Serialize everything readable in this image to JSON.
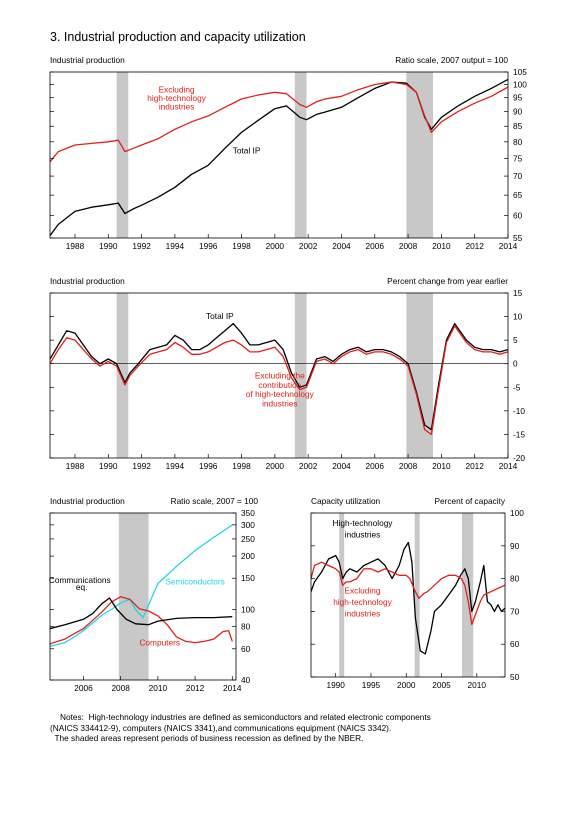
{
  "page_title": "3. Industrial production and capacity utilization",
  "notes": [
    "Notes:  High-technology industries are defined as semiconductors and related electronic components",
    "(NAICS 334412-9), computers (NAICS 3341),and communications equipment (NAICS 3342).",
    "  The shaded areas represent periods of business recession as defined by the NBER."
  ],
  "colors": {
    "total": "#000000",
    "excluding": "#e0201a",
    "semiconductors": "#22d4e8",
    "computers": "#e0201a",
    "communications": "#000000",
    "recession": "#c8c8c8"
  },
  "chart_data": [
    {
      "id": "panel1",
      "type": "line",
      "title": "Industrial production",
      "subtitle": "Ratio scale, 2007 output = 100",
      "y_scale": "log",
      "xlim": [
        1986.5,
        2014.0
      ],
      "ylim": [
        55,
        105
      ],
      "x_ticks": [
        1988,
        1990,
        1992,
        1994,
        1996,
        1998,
        2000,
        2002,
        2004,
        2006,
        2008,
        2010,
        2012,
        2014
      ],
      "y_ticks": [
        55,
        60,
        65,
        70,
        75,
        80,
        85,
        90,
        95,
        100,
        105
      ],
      "recessions": [
        [
          1990.5,
          1991.2
        ],
        [
          2001.2,
          2001.9
        ],
        [
          2007.9,
          2009.5
        ]
      ],
      "annotations": [
        {
          "text": "Excluding",
          "x": 1994.1,
          "y": 97,
          "color": "#e0201a"
        },
        {
          "text": "high-technology",
          "x": 1994.1,
          "y": 93.8,
          "color": "#e0201a"
        },
        {
          "text": "industries",
          "x": 1994.1,
          "y": 90.8,
          "color": "#e0201a"
        },
        {
          "text": "Total IP",
          "x": 1998.3,
          "y": 76.5,
          "color": "#000000"
        }
      ],
      "series": [
        {
          "name": "Total IP",
          "color": "#000000",
          "x": [
            1986.5,
            1987.0,
            1988.0,
            1989.0,
            1990.0,
            1990.6,
            1991.0,
            1991.5,
            1992.0,
            1993.0,
            1994.0,
            1995.0,
            1996.0,
            1997.0,
            1998.0,
            1999.0,
            2000.0,
            2000.7,
            2001.5,
            2001.9,
            2002.5,
            2003.0,
            2004.0,
            2005.0,
            2006.0,
            2007.0,
            2007.9,
            2008.5,
            2009.0,
            2009.4,
            2010.0,
            2011.0,
            2012.0,
            2013.0,
            2014.0
          ],
          "y": [
            55.5,
            58,
            61,
            62,
            62.6,
            63,
            60.5,
            61.6,
            62.5,
            64.5,
            67,
            70.5,
            73,
            78,
            83,
            87,
            91,
            92,
            88,
            87.2,
            89,
            89.8,
            91.5,
            95,
            98.5,
            101,
            100.5,
            97,
            88,
            84,
            88,
            92,
            95.5,
            98.5,
            102
          ]
        },
        {
          "name": "Excluding high-technology industries",
          "color": "#e0201a",
          "x": [
            1986.5,
            1987.0,
            1988.0,
            1989.0,
            1990.0,
            1990.6,
            1991.0,
            1991.5,
            1992.0,
            1993.0,
            1994.0,
            1995.0,
            1996.0,
            1997.0,
            1998.0,
            1999.0,
            2000.0,
            2000.7,
            2001.5,
            2001.9,
            2002.5,
            2003.0,
            2004.0,
            2005.0,
            2006.0,
            2007.0,
            2007.9,
            2008.5,
            2009.0,
            2009.4,
            2010.0,
            2011.0,
            2012.0,
            2013.0,
            2014.0
          ],
          "y": [
            74,
            77,
            79,
            79.5,
            80,
            80.5,
            77,
            78,
            79,
            81,
            84,
            86.5,
            88.5,
            91.5,
            94.5,
            96,
            97,
            96.5,
            92.5,
            91.5,
            93.5,
            94.5,
            95.5,
            98,
            100,
            101,
            100,
            97,
            88.5,
            83,
            86.5,
            90,
            93,
            95.5,
            99
          ]
        }
      ]
    },
    {
      "id": "panel2",
      "type": "line",
      "title": "Industrial production",
      "subtitle": "Percent change from year earlier",
      "xlim": [
        1986.5,
        2014.0
      ],
      "ylim": [
        -20,
        15
      ],
      "x_ticks": [
        1988,
        1990,
        1992,
        1994,
        1996,
        1998,
        2000,
        2002,
        2004,
        2006,
        2008,
        2010,
        2012,
        2014
      ],
      "y_ticks": [
        -20,
        -15,
        -10,
        -5,
        0,
        5,
        10,
        15
      ],
      "zero_line": true,
      "recessions": [
        [
          1990.5,
          1991.2
        ],
        [
          2001.2,
          2001.9
        ],
        [
          2007.9,
          2009.5
        ]
      ],
      "annotations": [
        {
          "text": "Total IP",
          "x": 1996.7,
          "y": 9.5,
          "color": "#000000"
        },
        {
          "text": "Excluding the",
          "x": 2000.3,
          "y": -3.1,
          "color": "#e0201a"
        },
        {
          "text": "contribution",
          "x": 2000.3,
          "y": -5.1,
          "color": "#e0201a"
        },
        {
          "text": "of high-technology",
          "x": 2000.3,
          "y": -7.1,
          "color": "#e0201a"
        },
        {
          "text": "industries",
          "x": 2000.3,
          "y": -9.1,
          "color": "#e0201a"
        }
      ],
      "series": [
        {
          "name": "Total IP",
          "color": "#000000",
          "x": [
            1986.5,
            1987.0,
            1987.5,
            1988.0,
            1988.5,
            1989.0,
            1989.5,
            1990.0,
            1990.5,
            1991.0,
            1991.3,
            1991.8,
            1992.5,
            1993.0,
            1993.5,
            1994.0,
            1994.5,
            1995.0,
            1995.5,
            1996.0,
            1996.5,
            1997.0,
            1997.5,
            1998.0,
            1998.5,
            1999.0,
            1999.5,
            2000.0,
            2000.5,
            2001.0,
            2001.5,
            2001.9,
            2002.5,
            2003.0,
            2003.5,
            2004.0,
            2004.5,
            2005.0,
            2005.5,
            2006.0,
            2006.5,
            2007.0,
            2007.5,
            2008.0,
            2008.5,
            2009.0,
            2009.4,
            2009.8,
            2010.3,
            2010.8,
            2011.5,
            2012.0,
            2012.5,
            2013.0,
            2013.5,
            2014.0
          ],
          "y": [
            1,
            4,
            7,
            6.5,
            4,
            1.5,
            0,
            1,
            0,
            -4,
            -2,
            0,
            3,
            3.5,
            4,
            6,
            5,
            3,
            3,
            4,
            5.5,
            7,
            8.5,
            6.5,
            4,
            4,
            4.5,
            5,
            3,
            -2,
            -5,
            -4.5,
            1,
            1.5,
            0.5,
            2,
            3,
            3.5,
            2.5,
            3,
            3,
            2.5,
            1.5,
            0,
            -6,
            -13,
            -14,
            -5,
            5,
            8.5,
            5,
            3.5,
            3,
            3,
            2.5,
            3
          ]
        },
        {
          "name": "Excluding the contribution of high-technology industries",
          "color": "#e0201a",
          "x": [
            1986.5,
            1987.0,
            1987.5,
            1988.0,
            1988.5,
            1989.0,
            1989.5,
            1990.0,
            1990.5,
            1991.0,
            1991.3,
            1991.8,
            1992.5,
            1993.0,
            1993.5,
            1994.0,
            1994.5,
            1995.0,
            1995.5,
            1996.0,
            1996.5,
            1997.0,
            1997.5,
            1998.0,
            1998.5,
            1999.0,
            1999.5,
            2000.0,
            2000.5,
            2001.0,
            2001.5,
            2001.9,
            2002.5,
            2003.0,
            2003.5,
            2004.0,
            2004.5,
            2005.0,
            2005.5,
            2006.0,
            2006.5,
            2007.0,
            2007.5,
            2008.0,
            2008.5,
            2009.0,
            2009.4,
            2009.8,
            2010.3,
            2010.8,
            2011.5,
            2012.0,
            2012.5,
            2013.0,
            2013.5,
            2014.0
          ],
          "y": [
            0,
            3,
            5.5,
            5,
            3,
            1,
            -0.5,
            0.5,
            -0.5,
            -4.5,
            -2.5,
            -0.5,
            2,
            2.5,
            3,
            4.5,
            3.5,
            2,
            2,
            2.5,
            3.5,
            4.5,
            5,
            4,
            2.5,
            2.5,
            3,
            3.5,
            1.5,
            -3,
            -5.5,
            -5,
            0.5,
            1,
            0,
            1.5,
            2.5,
            3,
            2,
            2.5,
            2.5,
            2,
            1,
            -0.5,
            -6.5,
            -14,
            -15,
            -6,
            4.5,
            8,
            4.5,
            3,
            2.5,
            2.5,
            2,
            2.5
          ]
        }
      ]
    },
    {
      "id": "panel3",
      "type": "line",
      "title": "Industrial production",
      "subtitle": "Ratio scale, 2007 = 100",
      "y_scale": "log",
      "xlim": [
        2004.2,
        2014.2
      ],
      "ylim": [
        40,
        350
      ],
      "x_ticks": [
        2006,
        2008,
        2010,
        2012,
        2014
      ],
      "y_ticks": [
        40,
        60,
        80,
        100,
        150,
        200,
        250,
        300,
        350
      ],
      "recessions": [
        [
          2007.9,
          2009.5
        ]
      ],
      "annotations": [
        {
          "text": "Communications",
          "x": 2005.8,
          "y": 141,
          "color": "#000000"
        },
        {
          "text": "eq.",
          "x": 2005.9,
          "y": 129,
          "color": "#000000"
        },
        {
          "text": "Semiconductors",
          "x": 2012.0,
          "y": 138,
          "color": "#22d4e8"
        },
        {
          "text": "Computers",
          "x": 2010.1,
          "y": 62.5,
          "color": "#e0201a"
        }
      ],
      "series": [
        {
          "name": "Semiconductors",
          "color": "#22d4e8",
          "x": [
            2004.2,
            2005.0,
            2005.5,
            2006.0,
            2006.5,
            2007.0,
            2007.5,
            2008.0,
            2008.5,
            2008.8,
            2009.2,
            2009.6,
            2010.0,
            2011.0,
            2012.0,
            2013.0,
            2014.0
          ],
          "y": [
            62,
            65,
            70,
            76,
            84,
            93,
            100,
            109,
            114,
            100,
            90,
            112,
            140,
            175,
            215,
            255,
            300
          ]
        },
        {
          "name": "Computers",
          "color": "#e0201a",
          "x": [
            2004.2,
            2005.0,
            2005.5,
            2006.0,
            2006.5,
            2007.0,
            2007.5,
            2008.0,
            2008.5,
            2009.0,
            2009.5,
            2010.0,
            2010.5,
            2011.0,
            2011.5,
            2012.0,
            2012.5,
            2013.0,
            2013.5,
            2013.8,
            2014.0
          ],
          "y": [
            64,
            68,
            73,
            78,
            87,
            97,
            110,
            118,
            114,
            101,
            98,
            92,
            82,
            70,
            66,
            65,
            66,
            68,
            75,
            76,
            66
          ]
        },
        {
          "name": "Communications eq.",
          "color": "#000000",
          "x": [
            2004.2,
            2005.0,
            2005.5,
            2006.0,
            2006.5,
            2007.0,
            2007.4,
            2007.8,
            2008.3,
            2008.8,
            2009.5,
            2010.0,
            2011.0,
            2012.0,
            2013.0,
            2014.0
          ],
          "y": [
            78,
            82,
            85,
            88,
            95,
            108,
            116,
            100,
            88,
            83,
            82,
            86,
            89,
            90,
            90,
            91
          ]
        }
      ]
    },
    {
      "id": "panel4",
      "type": "line",
      "title": "Capacity utilization",
      "subtitle": "Percent of capacity",
      "xlim": [
        1986.5,
        2014.0
      ],
      "ylim": [
        50,
        100
      ],
      "x_ticks": [
        1990,
        1995,
        2000,
        2005,
        2010
      ],
      "y_ticks": [
        50,
        60,
        70,
        80,
        90,
        100
      ],
      "recessions": [
        [
          1990.5,
          1991.2
        ],
        [
          2001.2,
          2001.9
        ],
        [
          2007.9,
          2009.5
        ]
      ],
      "annotations": [
        {
          "text": "High-technology",
          "x": 1993.8,
          "y": 96,
          "color": "#000000"
        },
        {
          "text": "industries",
          "x": 1993.8,
          "y": 92.5,
          "color": "#000000"
        },
        {
          "text": "Excluding",
          "x": 1993.8,
          "y": 75.5,
          "color": "#e0201a"
        },
        {
          "text": "high-technology",
          "x": 1993.8,
          "y": 72,
          "color": "#e0201a"
        },
        {
          "text": "industries",
          "x": 1993.8,
          "y": 68.5,
          "color": "#e0201a"
        }
      ],
      "series": [
        {
          "name": "High-technology industries",
          "color": "#000000",
          "x": [
            1986.5,
            1987.0,
            1988.0,
            1989.0,
            1990.0,
            1990.5,
            1991.0,
            1991.5,
            1992.0,
            1993.0,
            1994.0,
            1995.0,
            1996.0,
            1997.0,
            1998.0,
            1999.0,
            1999.7,
            2000.3,
            2000.8,
            2001.3,
            2002.0,
            2002.7,
            2003.5,
            2004.0,
            2005.0,
            2006.0,
            2007.0,
            2007.7,
            2008.3,
            2008.8,
            2009.3,
            2009.8,
            2010.5,
            2011.0,
            2011.5,
            2012.0,
            2012.5,
            2013.0,
            2013.5,
            2014.0
          ],
          "y": [
            76,
            79,
            82,
            86,
            87,
            85,
            80,
            82,
            83,
            82,
            84,
            85,
            86,
            84,
            80,
            84,
            89,
            91,
            85,
            68,
            58,
            57,
            64,
            70,
            72,
            75,
            78,
            81,
            83,
            80,
            70,
            73,
            79,
            84,
            73,
            72,
            70,
            72,
            70,
            71
          ]
        },
        {
          "name": "Excluding high-technology industries",
          "color": "#e0201a",
          "x": [
            1986.5,
            1987.0,
            1988.0,
            1989.0,
            1990.0,
            1990.5,
            1991.0,
            1991.5,
            1992.0,
            1993.0,
            1994.0,
            1995.0,
            1996.0,
            1997.0,
            1998.0,
            1999.0,
            2000.0,
            2000.5,
            2001.3,
            2001.8,
            2002.5,
            2003.0,
            2004.0,
            2005.0,
            2006.0,
            2007.0,
            2007.8,
            2008.3,
            2008.8,
            2009.3,
            2009.8,
            2010.5,
            2011.0,
            2012.0,
            2013.0,
            2014.0
          ],
          "y": [
            80,
            84,
            85,
            84,
            83,
            82,
            78,
            79,
            79,
            80,
            83,
            83,
            82,
            83,
            82,
            81,
            81,
            80,
            76,
            74,
            75.5,
            76,
            78,
            80,
            81,
            81,
            80,
            78,
            73,
            66,
            69,
            73,
            75,
            76,
            77,
            78
          ]
        }
      ]
    }
  ]
}
